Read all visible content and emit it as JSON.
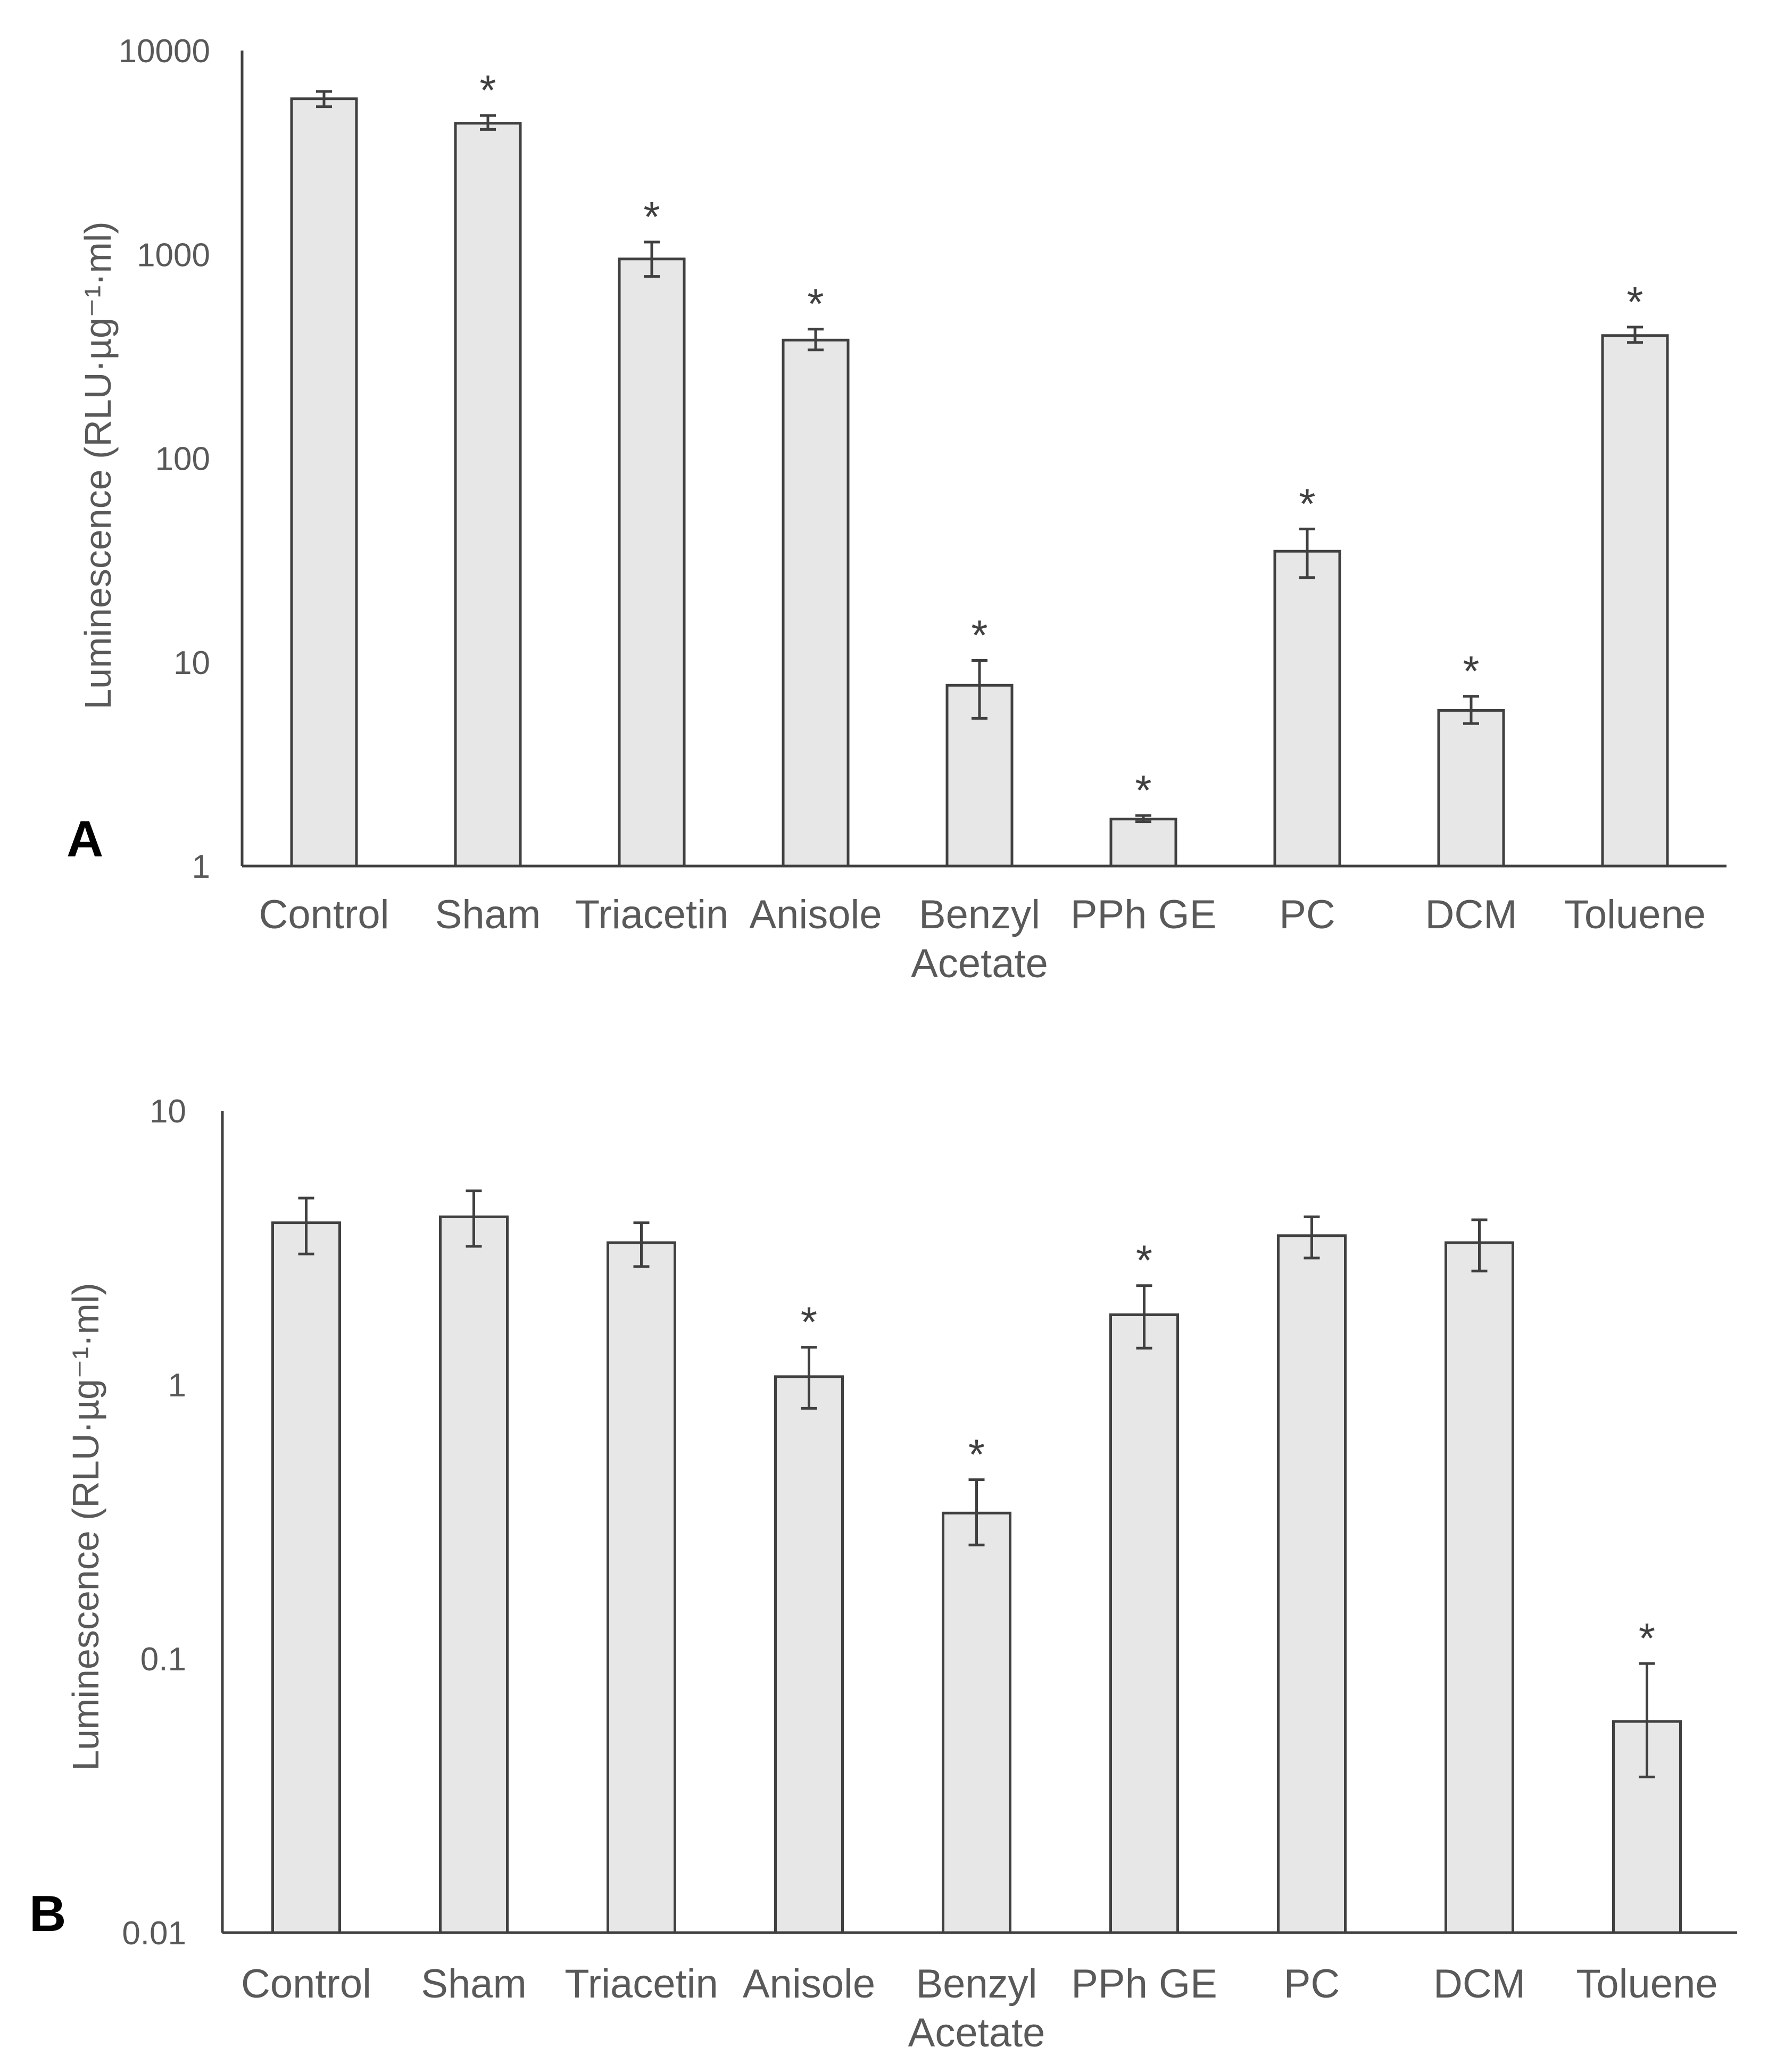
{
  "colors": {
    "bar_fill": "#e7e7e7",
    "bar_stroke": "#404040",
    "axis": "#404040",
    "text": "#595959"
  },
  "chart_data": [
    {
      "type": "bar",
      "panel": "A",
      "ylabel": "Luminescence (RLU·µg⁻¹·ml)",
      "yscale": "log",
      "ylim": [
        1,
        10000
      ],
      "yticks": [
        1,
        10,
        100,
        1000,
        10000
      ],
      "ytick_labels": [
        "1",
        "10",
        "100",
        "1000",
        "10000"
      ],
      "categories": [
        [
          "Control"
        ],
        [
          "Sham"
        ],
        [
          "Triacetin"
        ],
        [
          "Anisole"
        ],
        [
          "Benzyl",
          "Acetate"
        ],
        [
          "PPh GE"
        ],
        [
          "PC"
        ],
        [
          "DCM"
        ],
        [
          "Toluene"
        ]
      ],
      "values": [
        5800,
        4400,
        950,
        380,
        7.7,
        1.7,
        35,
        5.8,
        400
      ],
      "err_low": [
        5300,
        4100,
        780,
        340,
        5.3,
        1.65,
        26,
        5.0,
        370
      ],
      "err_high": [
        6300,
        4800,
        1150,
        430,
        10.2,
        1.77,
        45,
        6.8,
        440
      ],
      "significant": [
        false,
        true,
        true,
        true,
        true,
        true,
        true,
        true,
        true
      ],
      "significance_marker": "*"
    },
    {
      "type": "bar",
      "panel": "B",
      "ylabel": "Luminescence (RLU·µg⁻¹·ml)",
      "yscale": "log",
      "ylim": [
        0.01,
        10
      ],
      "yticks": [
        0.01,
        0.1,
        1,
        10
      ],
      "ytick_labels": [
        "0.01",
        "0.1",
        "1",
        "10"
      ],
      "categories": [
        [
          "Control"
        ],
        [
          "Sham"
        ],
        [
          "Triacetin"
        ],
        [
          "Anisole"
        ],
        [
          "Benzyl",
          "Acetate"
        ],
        [
          "PPh GE"
        ],
        [
          "PC"
        ],
        [
          "DCM"
        ],
        [
          "Toluene"
        ]
      ],
      "values": [
        3.9,
        4.1,
        3.3,
        1.07,
        0.34,
        1.8,
        3.5,
        3.3,
        0.059
      ],
      "err_low": [
        3.0,
        3.2,
        2.7,
        0.82,
        0.26,
        1.36,
        2.9,
        2.6,
        0.037
      ],
      "err_high": [
        4.8,
        5.1,
        3.9,
        1.37,
        0.45,
        2.3,
        4.1,
        4.0,
        0.096
      ],
      "significant": [
        false,
        false,
        false,
        true,
        true,
        true,
        false,
        false,
        true
      ],
      "significance_marker": "*"
    }
  ]
}
